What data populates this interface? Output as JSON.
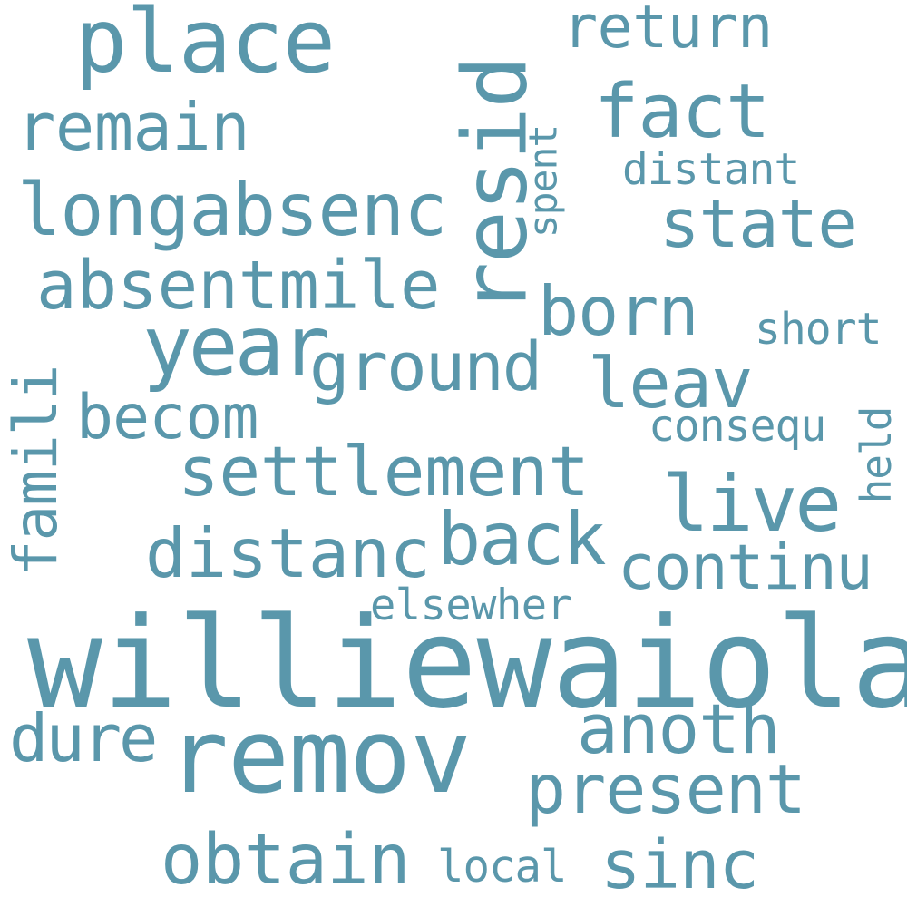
{
  "word_cloud": {
    "color": "#5a97ab",
    "background": "#ffffff",
    "words": [
      {
        "text": "williewaiola",
        "orientation": "horizontal"
      },
      {
        "text": "remov",
        "orientation": "horizontal"
      },
      {
        "text": "resid",
        "orientation": "vertical"
      },
      {
        "text": "place",
        "orientation": "horizontal"
      },
      {
        "text": "year",
        "orientation": "horizontal"
      },
      {
        "text": "longabsenc",
        "orientation": "horizontal"
      },
      {
        "text": "absentmile",
        "orientation": "horizontal"
      },
      {
        "text": "settlement",
        "orientation": "horizontal"
      },
      {
        "text": "distanc",
        "orientation": "horizontal"
      },
      {
        "text": "live",
        "orientation": "horizontal"
      },
      {
        "text": "present",
        "orientation": "horizontal"
      },
      {
        "text": "obtain",
        "orientation": "horizontal"
      },
      {
        "text": "fact",
        "orientation": "horizontal"
      },
      {
        "text": "back",
        "orientation": "horizontal"
      },
      {
        "text": "state",
        "orientation": "horizontal"
      },
      {
        "text": "ground",
        "orientation": "horizontal"
      },
      {
        "text": "anoth",
        "orientation": "horizontal"
      },
      {
        "text": "remain",
        "orientation": "horizontal"
      },
      {
        "text": "born",
        "orientation": "horizontal"
      },
      {
        "text": "leav",
        "orientation": "horizontal"
      },
      {
        "text": "becom",
        "orientation": "horizontal"
      },
      {
        "text": "continu",
        "orientation": "horizontal"
      },
      {
        "text": "sinc",
        "orientation": "horizontal"
      },
      {
        "text": "dure",
        "orientation": "horizontal"
      },
      {
        "text": "return",
        "orientation": "horizontal"
      },
      {
        "text": "famili",
        "orientation": "vertical"
      },
      {
        "text": "elsewher",
        "orientation": "horizontal"
      },
      {
        "text": "consequ",
        "orientation": "horizontal"
      },
      {
        "text": "distant",
        "orientation": "horizontal"
      },
      {
        "text": "short",
        "orientation": "horizontal"
      },
      {
        "text": "local",
        "orientation": "horizontal"
      },
      {
        "text": "spent",
        "orientation": "vertical"
      },
      {
        "text": "held",
        "orientation": "vertical"
      }
    ]
  }
}
